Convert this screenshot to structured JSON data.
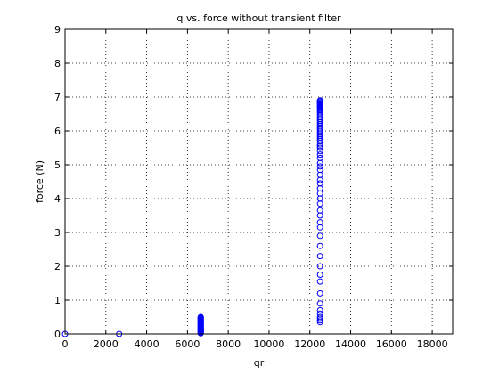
{
  "chart_data": {
    "type": "scatter",
    "title": "q vs. force without transient filter",
    "xlabel": "qr",
    "ylabel": "force (N)",
    "xlim": [
      0,
      19000
    ],
    "ylim": [
      0,
      9
    ],
    "xticks": [
      0,
      2000,
      4000,
      6000,
      8000,
      10000,
      12000,
      14000,
      16000,
      18000
    ],
    "yticks": [
      0,
      1,
      2,
      3,
      4,
      5,
      6,
      7,
      8,
      9
    ],
    "xtick_labels": [
      "0",
      "2000",
      "4000",
      "6000",
      "8000",
      "10000",
      "12000",
      "14000",
      "16000",
      "18000"
    ],
    "ytick_labels": [
      "0",
      "1",
      "2",
      "3",
      "4",
      "5",
      "6",
      "7",
      "8",
      "9"
    ],
    "grid": true,
    "marker": "open-circle",
    "color": "#0000ff",
    "series": [
      {
        "x": [
          0,
          2650,
          6650,
          6650,
          6650,
          6650,
          6650,
          6650,
          6650,
          6650,
          6650,
          6650,
          6650,
          6650,
          6650,
          6650,
          6650,
          6650,
          6650,
          6650,
          6650,
          6650,
          6650,
          6650,
          6650,
          6650,
          6650,
          6650,
          6650,
          6650,
          6650,
          6650,
          6650,
          12500,
          12500,
          12500,
          12500,
          12500,
          12500,
          12500,
          12500,
          12500,
          12500,
          12500,
          12500,
          12500,
          12500,
          12500,
          12500,
          12500,
          12500,
          12500,
          12500,
          12500,
          12500,
          12500,
          12500,
          12500,
          12500,
          12500,
          12500,
          12500,
          12500,
          12500,
          12500,
          12500,
          12500,
          12500,
          12500,
          12500,
          12500,
          12500,
          12500,
          12500,
          12500,
          12500,
          12500,
          12500,
          12500,
          12500,
          12500,
          12500,
          12500,
          12500,
          12500,
          12500,
          12500,
          12500,
          12500,
          12500,
          12500,
          12500,
          12500,
          12500,
          12500,
          12500,
          12500,
          12500
        ],
        "y": [
          0,
          0,
          0.02,
          0.05,
          0.08,
          0.1,
          0.12,
          0.15,
          0.17,
          0.2,
          0.22,
          0.25,
          0.27,
          0.3,
          0.32,
          0.35,
          0.37,
          0.4,
          0.42,
          0.45,
          0.47,
          0.5,
          0.03,
          0.06,
          0.09,
          0.13,
          0.18,
          0.23,
          0.28,
          0.33,
          0.38,
          0.43,
          0.48,
          0.35,
          0.4,
          0.45,
          0.5,
          0.6,
          0.7,
          0.9,
          1.2,
          1.55,
          1.75,
          2.0,
          2.3,
          2.6,
          2.9,
          3.15,
          3.3,
          3.5,
          3.65,
          3.85,
          4.0,
          4.15,
          4.3,
          4.45,
          4.55,
          4.7,
          4.85,
          4.95,
          5.05,
          5.2,
          5.3,
          5.4,
          5.5,
          5.55,
          5.6,
          5.7,
          5.75,
          5.8,
          5.85,
          5.9,
          5.95,
          6.0,
          6.05,
          6.1,
          6.15,
          6.2,
          6.25,
          6.3,
          6.35,
          6.4,
          6.45,
          6.5,
          6.55,
          6.6,
          6.62,
          6.65,
          6.68,
          6.7,
          6.72,
          6.75,
          6.78,
          6.8,
          6.82,
          6.85,
          6.88,
          6.9
        ]
      }
    ]
  }
}
